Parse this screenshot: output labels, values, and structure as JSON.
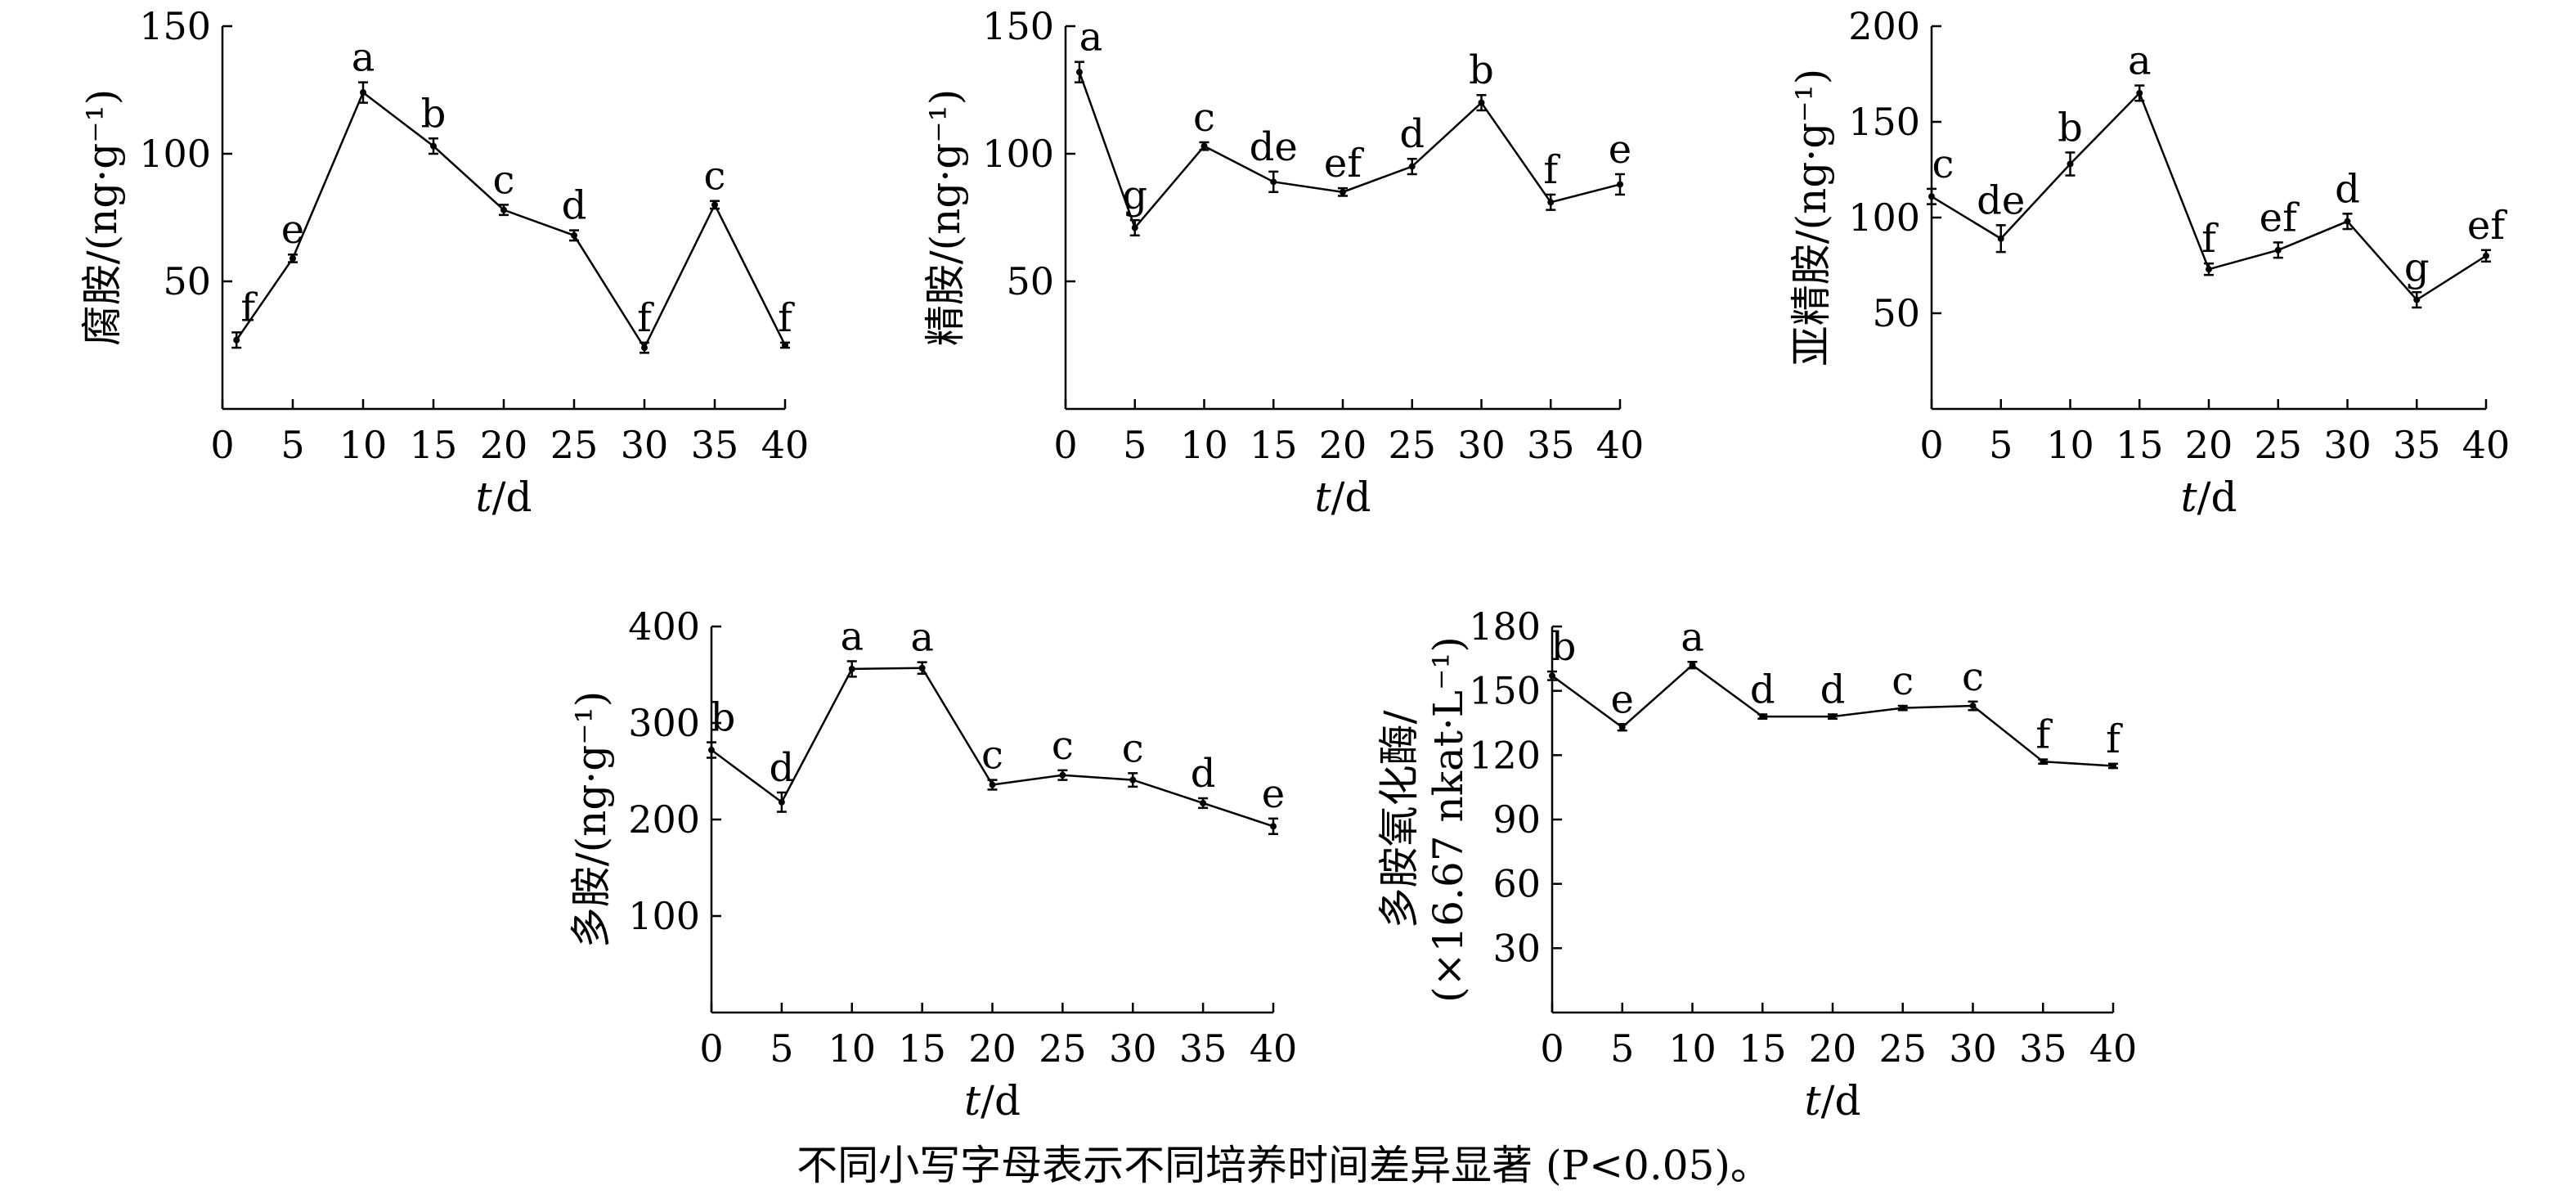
{
  "chart_data": [
    {
      "type": "line",
      "x": [
        1,
        5,
        10,
        15,
        20,
        25,
        30,
        35,
        40
      ],
      "values": [
        27,
        59,
        124,
        103,
        78,
        68,
        24,
        80,
        25
      ],
      "errors": [
        3,
        1.5,
        4,
        3,
        2,
        2,
        2,
        1.5,
        1
      ],
      "labels": [
        "f",
        "e",
        "a",
        "b",
        "c",
        "d",
        "f",
        "c",
        "f"
      ],
      "xlim": [
        0,
        40
      ],
      "ylim": [
        0,
        150
      ],
      "xticks": [
        "0",
        "5",
        "10",
        "15",
        "20",
        "25",
        "30",
        "35",
        "40"
      ],
      "yticks": [
        "50",
        "100",
        "150"
      ],
      "ytick_values": [
        50,
        100,
        150
      ],
      "xlabel": "t/d",
      "ylabel": "腐胺/(ng·g⁻¹)",
      "grid": false
    },
    {
      "type": "line",
      "x": [
        1,
        5,
        10,
        15,
        20,
        25,
        30,
        35,
        40
      ],
      "values": [
        132,
        71,
        103,
        89,
        85,
        95,
        120,
        81,
        88
      ],
      "errors": [
        4,
        3,
        1.5,
        4,
        1.5,
        3,
        3,
        3,
        4
      ],
      "labels": [
        "a",
        "g",
        "c",
        "de",
        "ef",
        "d",
        "b",
        "f",
        "e"
      ],
      "xlim": [
        0,
        40
      ],
      "ylim": [
        0,
        150
      ],
      "xticks": [
        "0",
        "5",
        "10",
        "15",
        "20",
        "25",
        "30",
        "35",
        "40"
      ],
      "yticks": [
        "50",
        "100",
        "150"
      ],
      "ytick_values": [
        50,
        100,
        150
      ],
      "xlabel": "t/d",
      "ylabel": "精胺/(ng·g⁻¹)",
      "grid": false
    },
    {
      "type": "line",
      "x": [
        0,
        5,
        10,
        15,
        20,
        25,
        30,
        35,
        40
      ],
      "values": [
        111,
        89,
        128,
        165,
        73,
        83,
        98,
        57,
        80
      ],
      "errors": [
        4,
        7,
        6,
        4,
        3,
        4,
        4,
        4,
        3
      ],
      "labels": [
        "c",
        "de",
        "b",
        "a",
        "f",
        "ef",
        "d",
        "g",
        "ef"
      ],
      "xlim": [
        0,
        40
      ],
      "ylim": [
        0,
        200
      ],
      "xticks": [
        "0",
        "5",
        "10",
        "15",
        "20",
        "25",
        "30",
        "35",
        "40"
      ],
      "yticks": [
        "50",
        "100",
        "150",
        "200"
      ],
      "ytick_values": [
        50,
        100,
        150,
        200
      ],
      "xlabel": "t/d",
      "ylabel": "亚精胺/(ng·g⁻¹)",
      "grid": false
    },
    {
      "type": "line",
      "x": [
        0,
        5,
        10,
        15,
        20,
        25,
        30,
        35,
        40
      ],
      "values": [
        272,
        218,
        356,
        357,
        236,
        246,
        241,
        217,
        193
      ],
      "errors": [
        8,
        10,
        8,
        6,
        5,
        5,
        7,
        5,
        8
      ],
      "labels": [
        "b",
        "d",
        "a",
        "a",
        "c",
        "c",
        "c",
        "d",
        "e"
      ],
      "xlim": [
        0,
        40
      ],
      "ylim": [
        0,
        400
      ],
      "xticks": [
        "0",
        "5",
        "10",
        "15",
        "20",
        "25",
        "30",
        "35",
        "40"
      ],
      "yticks": [
        "100",
        "200",
        "300",
        "400"
      ],
      "ytick_values": [
        100,
        200,
        300,
        400
      ],
      "xlabel": "t/d",
      "ylabel": "多胺/(ng·g⁻¹)",
      "grid": false
    },
    {
      "type": "line",
      "x": [
        0,
        5,
        10,
        15,
        20,
        25,
        30,
        35,
        40
      ],
      "values": [
        157,
        133,
        162,
        138,
        138,
        142,
        143,
        117,
        115
      ],
      "errors": [
        2,
        1.5,
        1.5,
        1,
        1,
        1,
        2,
        1,
        1
      ],
      "labels": [
        "b",
        "e",
        "a",
        "d",
        "d",
        "c",
        "c",
        "f",
        "f"
      ],
      "xlim": [
        0,
        40
      ],
      "ylim": [
        0,
        180
      ],
      "xticks": [
        "0",
        "5",
        "10",
        "15",
        "20",
        "25",
        "30",
        "35",
        "40"
      ],
      "yticks": [
        "30",
        "60",
        "90",
        "120",
        "150",
        "180"
      ],
      "ytick_values": [
        30,
        60,
        90,
        120,
        150,
        180
      ],
      "xlabel": "t/d",
      "ylabel": "多胺氧化酶/",
      "ylabel2": "(×16.67 nkat·L⁻¹)",
      "grid": false
    }
  ],
  "caption": "不同小写字母表示不同培养时间差异显著 (P<0.05)。"
}
